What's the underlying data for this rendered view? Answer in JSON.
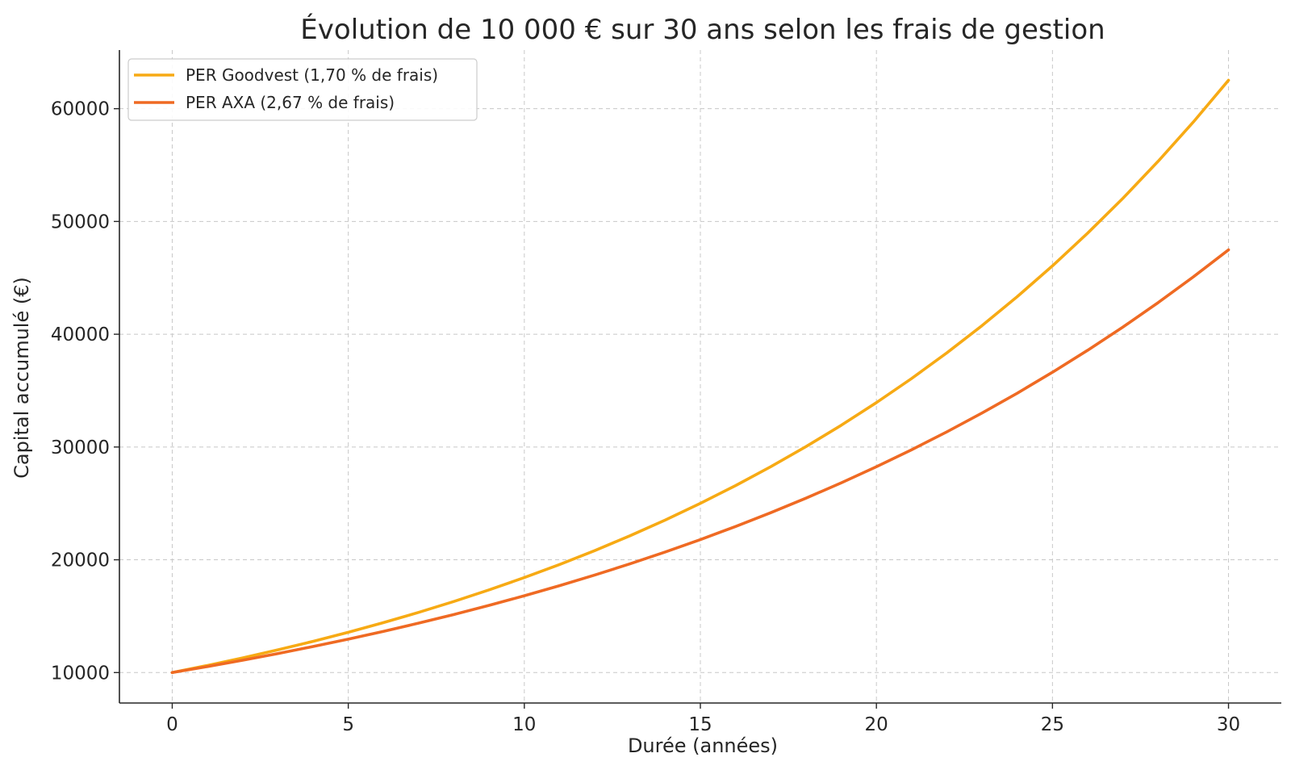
{
  "chart_data": {
    "type": "line",
    "title": "Évolution de 10 000 € sur 30 ans selon les frais de gestion",
    "xlabel": "Durée (années)",
    "ylabel": "Capital accumulé (€)",
    "xlim": [
      -1.5,
      31.5
    ],
    "ylim": [
      7300,
      65200
    ],
    "xticks": [
      0,
      5,
      10,
      15,
      20,
      25,
      30
    ],
    "yticks": [
      10000,
      20000,
      30000,
      40000,
      50000,
      60000
    ],
    "grid": true,
    "legend_position": "top-left",
    "x": [
      0,
      1,
      2,
      3,
      4,
      5,
      6,
      7,
      8,
      9,
      10,
      11,
      12,
      13,
      14,
      15,
      16,
      17,
      18,
      19,
      20,
      21,
      22,
      23,
      24,
      25,
      26,
      27,
      28,
      29,
      30
    ],
    "series": [
      {
        "name": "PER Goodvest (1,70 % de frais)",
        "color": "#f7aa14",
        "values": [
          10000,
          10630,
          11300,
          12012,
          12769,
          13573,
          14428,
          15337,
          16303,
          17331,
          18422,
          19583,
          20817,
          22128,
          23522,
          25004,
          26580,
          28254,
          30034,
          31926,
          33938,
          36076,
          38349,
          40765,
          43333,
          46063,
          48965,
          52049,
          55329,
          58814,
          62520
        ]
      },
      {
        "name": "PER AXA (2,67 % de frais)",
        "color": "#ef6a23",
        "values": [
          10000,
          10533,
          11094,
          11686,
          12308,
          12964,
          13655,
          14383,
          15150,
          15957,
          16808,
          17704,
          18647,
          19641,
          20688,
          21791,
          22952,
          24176,
          25464,
          26822,
          28251,
          29757,
          31343,
          33014,
          34773,
          36627,
          38579,
          40635,
          42801,
          45082,
          47485
        ]
      }
    ]
  }
}
